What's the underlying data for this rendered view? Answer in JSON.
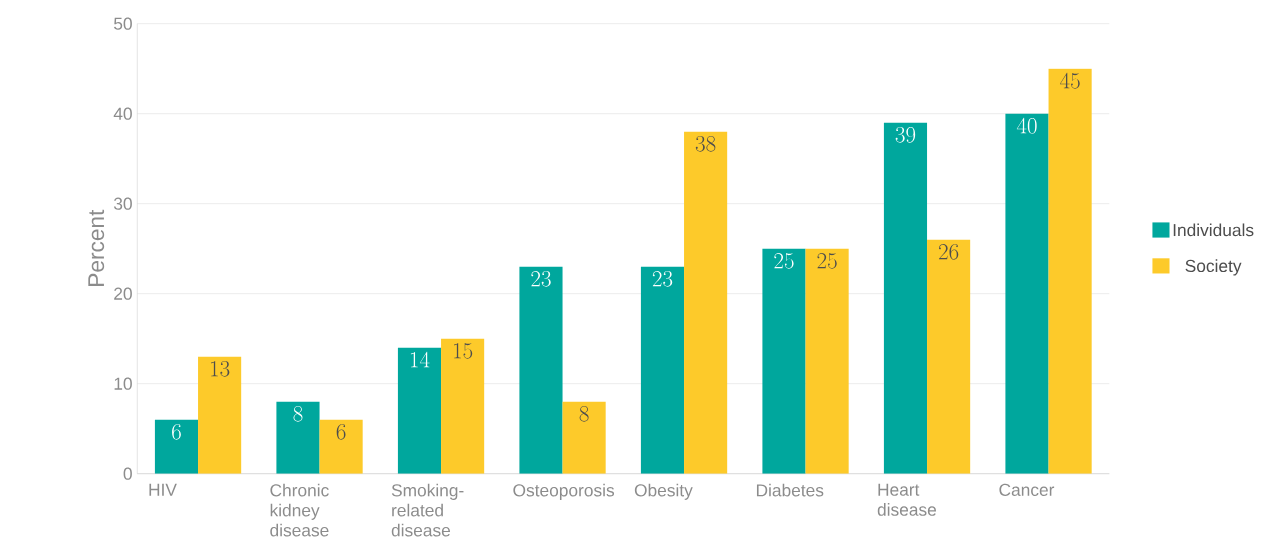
{
  "chart_data": {
    "type": "bar",
    "ylabel": "Percent",
    "categories": [
      "HIV",
      "Chronic kidney disease",
      "Smoking-related disease",
      "Osteoporosis",
      "Obesity",
      "Diabetes",
      "Heart disease",
      "Cancer"
    ],
    "series": [
      {
        "name": "Individuals",
        "color": "#00a79d",
        "values": [
          6,
          8,
          14,
          23,
          23,
          25,
          39,
          40
        ]
      },
      {
        "name": "Society",
        "color": "#fdca2a",
        "values": [
          13,
          6,
          15,
          8,
          38,
          25,
          26,
          45
        ]
      }
    ],
    "ylim": [
      0,
      50
    ],
    "yticks": [
      0,
      10,
      20,
      30,
      40,
      50
    ],
    "grid": "y",
    "legend": "right",
    "data_labels": true
  }
}
